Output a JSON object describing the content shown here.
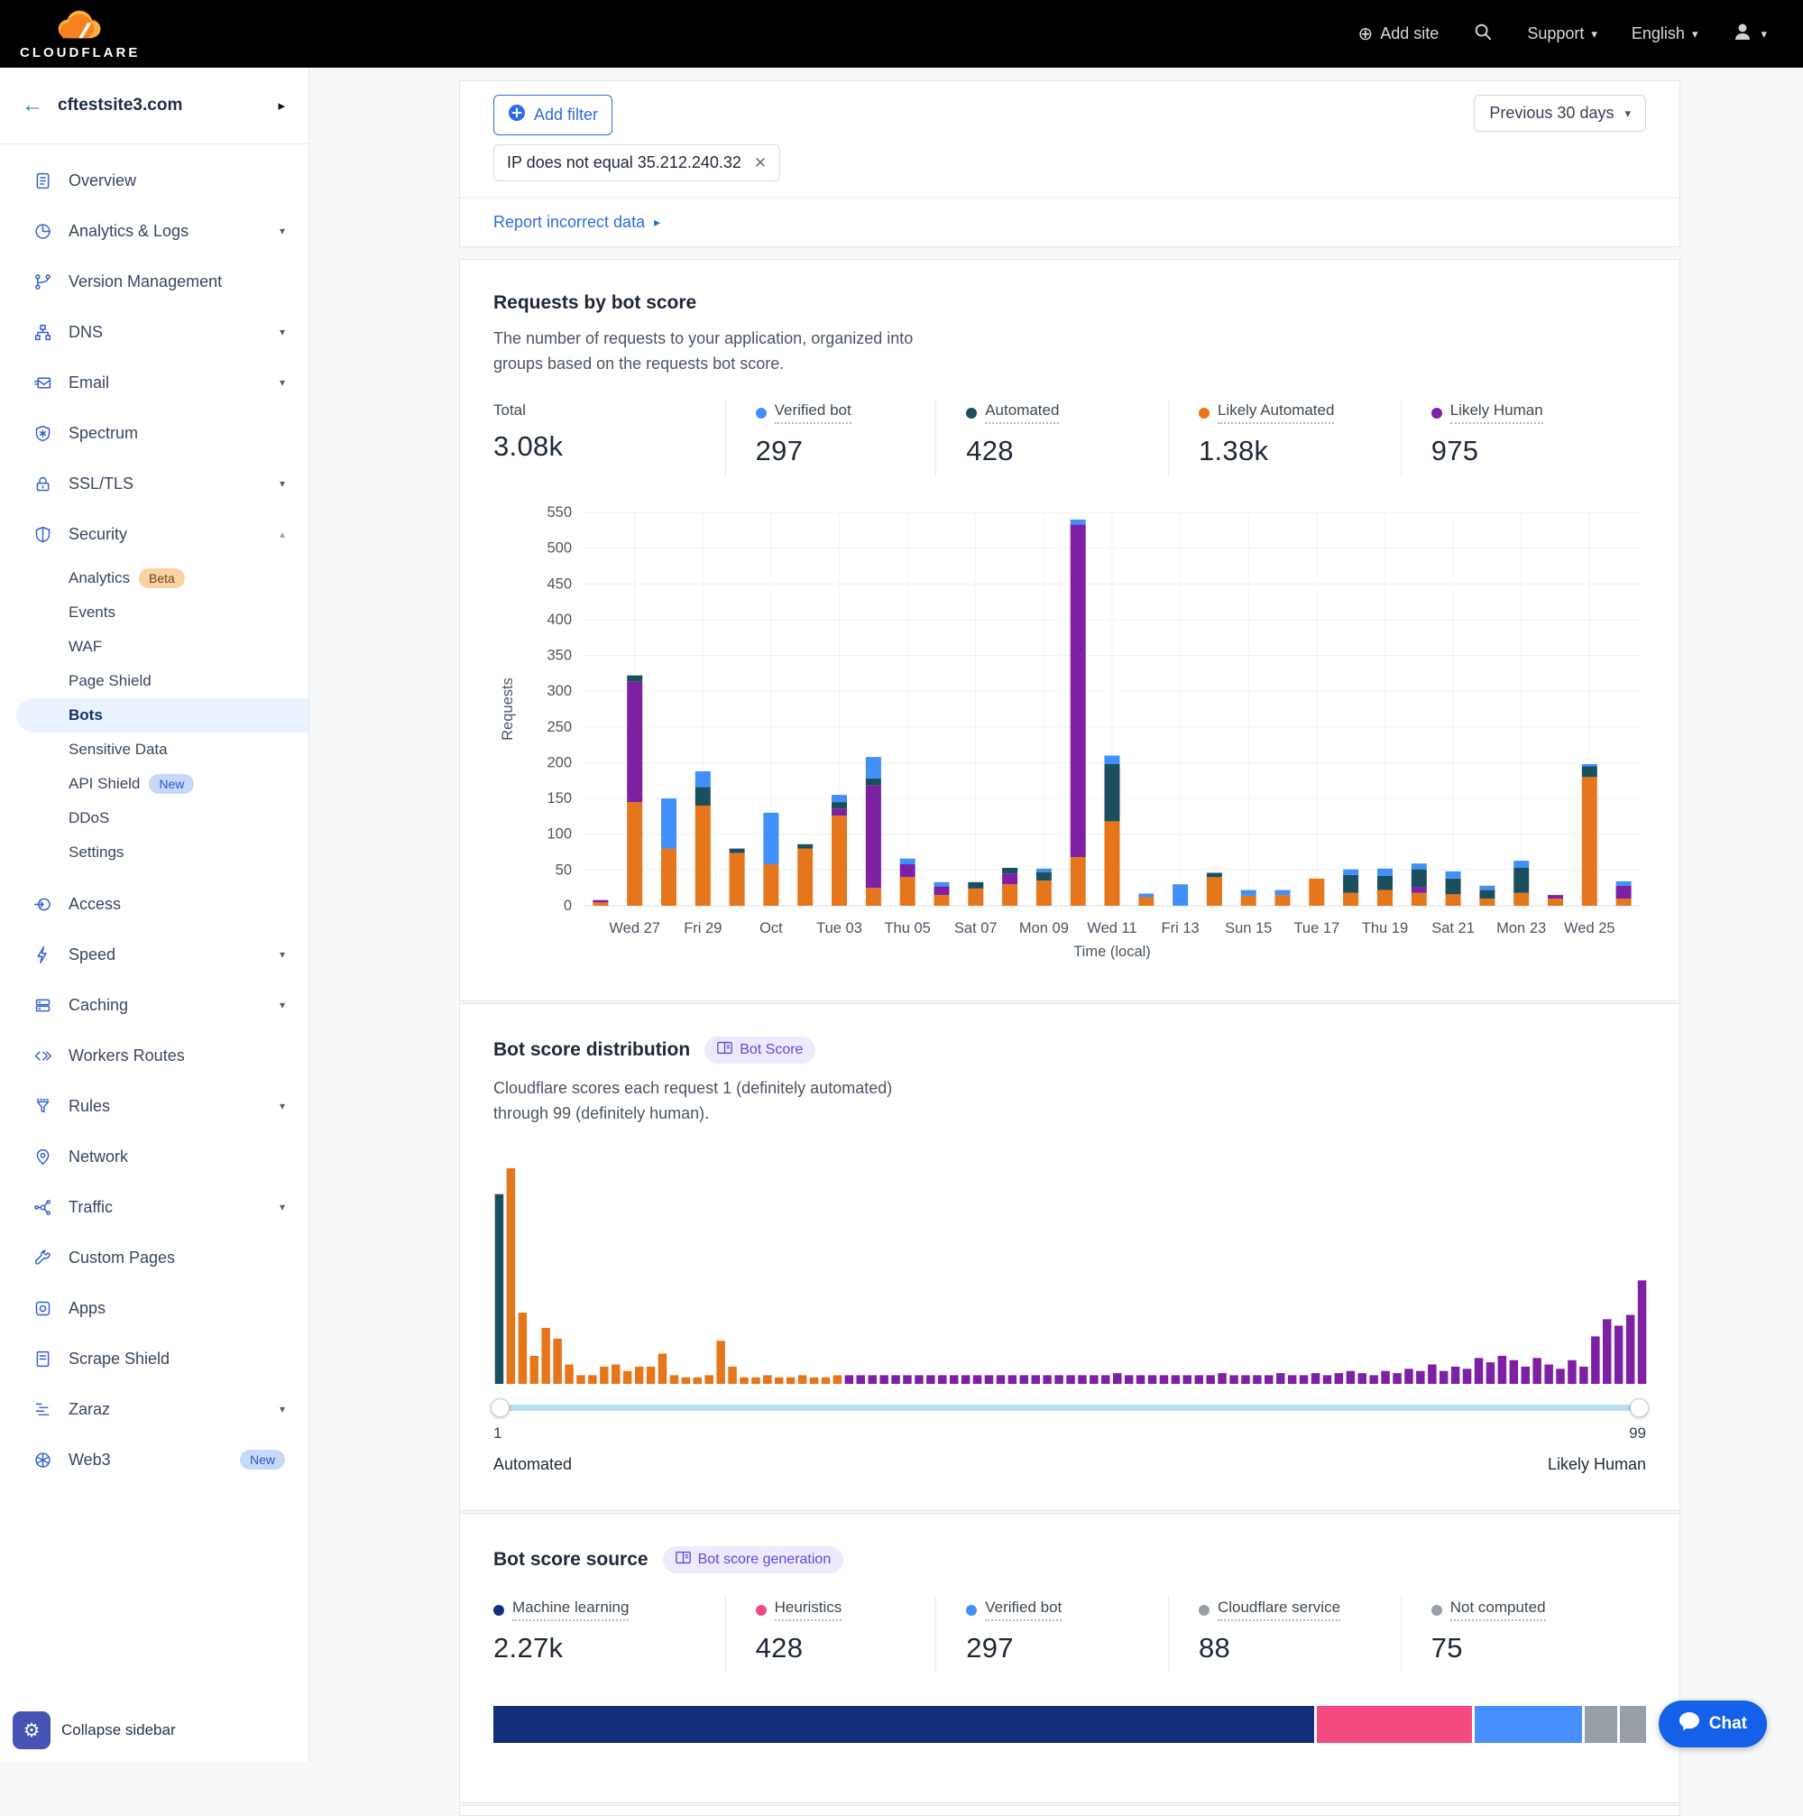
{
  "header": {
    "brand": "CLOUDFLARE",
    "add_site": "Add site",
    "support": "Support",
    "language": "English"
  },
  "sidebar": {
    "site": "cftestsite3.com",
    "items": [
      {
        "label": "Overview",
        "icon": "overview"
      },
      {
        "label": "Analytics & Logs",
        "icon": "analytics",
        "chevron": true
      },
      {
        "label": "Version Management",
        "icon": "version"
      },
      {
        "label": "DNS",
        "icon": "dns",
        "chevron": true
      },
      {
        "label": "Email",
        "icon": "email",
        "chevron": true
      },
      {
        "label": "Spectrum",
        "icon": "spectrum"
      },
      {
        "label": "SSL/TLS",
        "icon": "ssl",
        "chevron": true
      },
      {
        "label": "Security",
        "icon": "security",
        "expanded": true,
        "sub": [
          {
            "label": "Analytics",
            "badge": "Beta",
            "badge_style": "beta"
          },
          {
            "label": "Events"
          },
          {
            "label": "WAF"
          },
          {
            "label": "Page Shield"
          },
          {
            "label": "Bots",
            "active": true
          },
          {
            "label": "Sensitive Data"
          },
          {
            "label": "API Shield",
            "badge": "New",
            "badge_style": "new"
          },
          {
            "label": "DDoS"
          },
          {
            "label": "Settings"
          }
        ]
      },
      {
        "label": "Access",
        "icon": "access"
      },
      {
        "label": "Speed",
        "icon": "speed",
        "chevron": true
      },
      {
        "label": "Caching",
        "icon": "caching",
        "chevron": true
      },
      {
        "label": "Workers Routes",
        "icon": "workers"
      },
      {
        "label": "Rules",
        "icon": "rules",
        "chevron": true
      },
      {
        "label": "Network",
        "icon": "network"
      },
      {
        "label": "Traffic",
        "icon": "traffic",
        "chevron": true
      },
      {
        "label": "Custom Pages",
        "icon": "custom-pages"
      },
      {
        "label": "Apps",
        "icon": "apps"
      },
      {
        "label": "Scrape Shield",
        "icon": "scrape-shield"
      },
      {
        "label": "Zaraz",
        "icon": "zaraz",
        "chevron": true
      },
      {
        "label": "Web3",
        "icon": "web3",
        "badge": "New",
        "badge_style": "new"
      }
    ],
    "collapse_label": "Collapse sidebar"
  },
  "filter_bar": {
    "add_filter": "Add filter",
    "chip": "IP does not equal 35.212.240.32",
    "date_range": "Previous 30 days",
    "report_link": "Report incorrect data"
  },
  "requests_card": {
    "title": "Requests by bot score",
    "description": "The number of requests to your application, organized into groups based on the requests bot score.",
    "stats": [
      {
        "label": "Total",
        "value": "3.08k",
        "dot": null
      },
      {
        "label": "Verified bot",
        "value": "297",
        "dot": "#4190fa"
      },
      {
        "label": "Automated",
        "value": "428",
        "dot": "#1b4f5e"
      },
      {
        "label": "Likely Automated",
        "value": "1.38k",
        "dot": "#e6761c"
      },
      {
        "label": "Likely Human",
        "value": "975",
        "dot": "#7d20a4"
      }
    ]
  },
  "chart_data": [
    {
      "type": "bar",
      "stacked": true,
      "title": "Requests by bot score",
      "xlabel": "Time (local)",
      "ylabel": "Requests",
      "ylim": [
        0,
        550
      ],
      "ytick_step": 50,
      "grid": true,
      "x_labels": [
        "",
        "Wed 27",
        "",
        "Fri 29",
        "",
        "Oct",
        "",
        "Tue 03",
        "",
        "Thu 05",
        "",
        "Sat 07",
        "",
        "Mon 09",
        "",
        "Wed 11",
        "",
        "Fri 13",
        "",
        "Sun 15",
        "",
        "Tue 17",
        "",
        "Thu 19",
        "",
        "Sat 21",
        "",
        "Mon 23",
        "",
        "Wed 25",
        ""
      ],
      "series": [
        {
          "name": "Likely Automated",
          "color": "#e6761c",
          "values": [
            5,
            145,
            80,
            140,
            74,
            58,
            80,
            126,
            25,
            40,
            15,
            24,
            30,
            35,
            68,
            118,
            12,
            0,
            40,
            14,
            15,
            38,
            18,
            22,
            18,
            16,
            10,
            18,
            10,
            180,
            10
          ]
        },
        {
          "name": "Likely Human",
          "color": "#7d20a4",
          "values": [
            3,
            168,
            0,
            0,
            0,
            0,
            0,
            10,
            143,
            18,
            12,
            0,
            15,
            0,
            465,
            0,
            0,
            0,
            0,
            0,
            0,
            0,
            0,
            0,
            8,
            0,
            0,
            0,
            5,
            0,
            18
          ]
        },
        {
          "name": "Automated",
          "color": "#1b4f5e",
          "values": [
            0,
            9,
            0,
            26,
            6,
            0,
            6,
            9,
            10,
            0,
            0,
            9,
            8,
            12,
            0,
            80,
            0,
            0,
            6,
            0,
            0,
            0,
            25,
            20,
            25,
            22,
            12,
            35,
            0,
            15,
            0
          ]
        },
        {
          "name": "Verified bot",
          "color": "#4190fa",
          "values": [
            0,
            0,
            70,
            22,
            0,
            72,
            0,
            10,
            30,
            8,
            6,
            0,
            0,
            5,
            7,
            12,
            5,
            30,
            0,
            8,
            7,
            0,
            8,
            10,
            8,
            10,
            6,
            10,
            0,
            3,
            6
          ]
        }
      ]
    },
    {
      "type": "bar",
      "title": "Bot score distribution",
      "x_range": [
        1,
        99
      ],
      "ylim_pct": [
        0,
        100
      ],
      "color_rules": [
        {
          "from": 1,
          "to": 1,
          "color": "#1b4f5e",
          "name": "Automated"
        },
        {
          "from": 2,
          "to": 30,
          "color": "#e6761c",
          "name": "Likely Automated"
        },
        {
          "from": 31,
          "to": 99,
          "color": "#7d20a4",
          "name": "Likely Human"
        }
      ],
      "values_pct": [
        88,
        100,
        33,
        13,
        26,
        21,
        9,
        4,
        4,
        8,
        9,
        6,
        8,
        8,
        14,
        4,
        3,
        3,
        4,
        20,
        8,
        3,
        3,
        4,
        3,
        3,
        4,
        3,
        3,
        4,
        4,
        4,
        4,
        4,
        4,
        4,
        4,
        4,
        4,
        4,
        4,
        4,
        4,
        4,
        4,
        4,
        4,
        4,
        4,
        4,
        4,
        4,
        4,
        5,
        4,
        4,
        4,
        4,
        4,
        4,
        4,
        4,
        5,
        4,
        4,
        4,
        4,
        5,
        4,
        4,
        5,
        4,
        5,
        6,
        5,
        4,
        6,
        5,
        7,
        6,
        9,
        6,
        8,
        7,
        12,
        10,
        13,
        11,
        8,
        12,
        9,
        7,
        11,
        8,
        22,
        30,
        27,
        32,
        48
      ]
    }
  ],
  "distribution_card": {
    "title": "Bot score distribution",
    "badge": "Bot Score",
    "description": "Cloudflare scores each request 1 (definitely automated) through 99 (definitely human).",
    "slider": {
      "left_value": "1",
      "right_value": "99",
      "left_label": "Automated",
      "right_label": "Likely Human",
      "track_color": "#b5dff2"
    }
  },
  "source_card": {
    "title": "Bot score source",
    "badge": "Bot score generation",
    "stats": [
      {
        "label": "Machine learning",
        "value": "2.27k",
        "dot": "#132f7c"
      },
      {
        "label": "Heuristics",
        "value": "428",
        "dot": "#f34b80"
      },
      {
        "label": "Verified bot",
        "value": "297",
        "dot": "#4190fa"
      },
      {
        "label": "Cloudflare service",
        "value": "88",
        "dot": "#999fa7"
      },
      {
        "label": "Not computed",
        "value": "75",
        "dot": "#999fa7"
      }
    ],
    "segments": [
      {
        "name": "Machine learning",
        "color": "#132f7c",
        "pct": 71.9
      },
      {
        "name": "Heuristics",
        "color": "#f34b80",
        "pct": 13.6
      },
      {
        "name": "Verified bot",
        "color": "#478ffc",
        "pct": 9.4
      },
      {
        "name": "Cloudflare service",
        "color": "#999fa7",
        "pct": 2.8
      },
      {
        "name": "Not computed",
        "color": "#999fa7",
        "pct": 2.3
      }
    ]
  },
  "chat_label": "Chat"
}
